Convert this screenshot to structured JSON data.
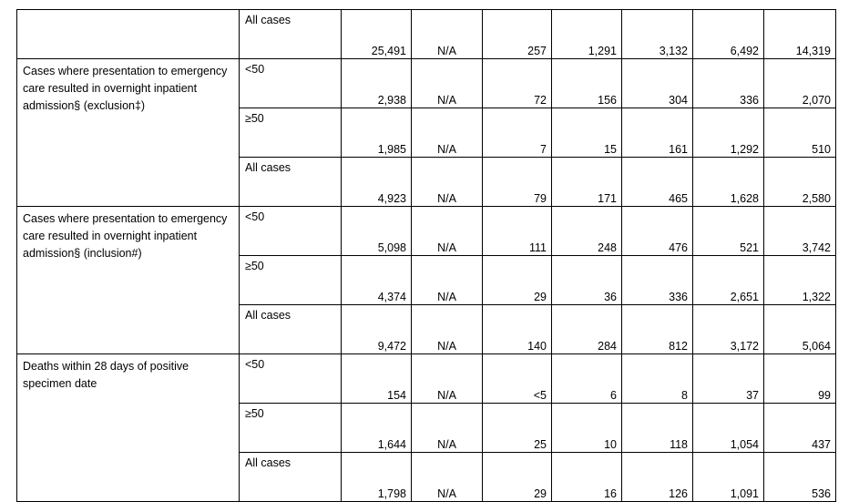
{
  "table": {
    "sections": [
      {
        "rows": [
          {
            "label": "All cases",
            "values": [
              "25,491",
              "N/A",
              "257",
              "1,291",
              "3,132",
              "6,492",
              "14,319"
            ]
          }
        ]
      },
      {
        "label": "Cases where presentation to emergency care resulted in overnight inpatient admission§ (exclusion‡)",
        "rows": [
          {
            "label": "<50",
            "values": [
              "2,938",
              "N/A",
              "72",
              "156",
              "304",
              "336",
              "2,070"
            ]
          },
          {
            "label": "≥50",
            "values": [
              "1,985",
              "N/A",
              "7",
              "15",
              "161",
              "1,292",
              "510"
            ]
          },
          {
            "label": "All cases",
            "values": [
              "4,923",
              "N/A",
              "79",
              "171",
              "465",
              "1,628",
              "2,580"
            ]
          }
        ]
      },
      {
        "label": "Cases where presentation to emergency care resulted in overnight inpatient admission§ (inclusion#)",
        "rows": [
          {
            "label": "<50",
            "values": [
              "5,098",
              "N/A",
              "111",
              "248",
              "476",
              "521",
              "3,742"
            ]
          },
          {
            "label": "≥50",
            "values": [
              "4,374",
              "N/A",
              "29",
              "36",
              "336",
              "2,651",
              "1,322"
            ]
          },
          {
            "label": "All cases",
            "values": [
              "9,472",
              "N/A",
              "140",
              "284",
              "812",
              "3,172",
              "5,064"
            ]
          }
        ]
      },
      {
        "label": "Deaths within 28 days of positive specimen date",
        "rows": [
          {
            "label": "<50",
            "values": [
              "154",
              "N/A",
              "<5",
              "6",
              "8",
              "37",
              "99"
            ]
          },
          {
            "label": "≥50",
            "values": [
              "1,644",
              "N/A",
              "25",
              "10",
              "118",
              "1,054",
              "437"
            ]
          },
          {
            "label": "All cases",
            "values": [
              "1,798",
              "N/A",
              "29",
              "16",
              "126",
              "1,091",
              "536"
            ]
          }
        ]
      }
    ]
  }
}
